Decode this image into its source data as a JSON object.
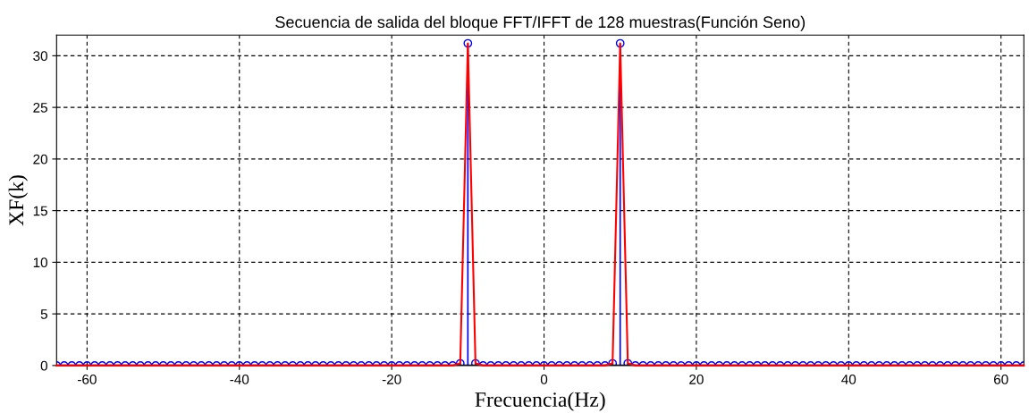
{
  "chart_data": {
    "type": "line",
    "title": "Secuencia de salida del bloque FFT/IFFT de 128 muestras(Función Seno)",
    "xlabel": "Frecuencia(Hz)",
    "ylabel": "XF(k)",
    "x": [
      -64,
      -63,
      -62,
      -61,
      -60,
      -59,
      -58,
      -57,
      -56,
      -55,
      -54,
      -53,
      -52,
      -51,
      -50,
      -49,
      -48,
      -47,
      -46,
      -45,
      -44,
      -43,
      -42,
      -41,
      -40,
      -39,
      -38,
      -37,
      -36,
      -35,
      -34,
      -33,
      -32,
      -31,
      -30,
      -29,
      -28,
      -27,
      -26,
      -25,
      -24,
      -23,
      -22,
      -21,
      -20,
      -19,
      -18,
      -17,
      -16,
      -15,
      -14,
      -13,
      -12,
      -11,
      -10,
      -9,
      -8,
      -7,
      -6,
      -5,
      -4,
      -3,
      -2,
      -1,
      0,
      1,
      2,
      3,
      4,
      5,
      6,
      7,
      8,
      9,
      10,
      11,
      12,
      13,
      14,
      15,
      16,
      17,
      18,
      19,
      20,
      21,
      22,
      23,
      24,
      25,
      26,
      27,
      28,
      29,
      30,
      31,
      32,
      33,
      34,
      35,
      36,
      37,
      38,
      39,
      40,
      41,
      42,
      43,
      44,
      45,
      46,
      47,
      48,
      49,
      50,
      51,
      52,
      53,
      54,
      55,
      56,
      57,
      58,
      59,
      60,
      61,
      62,
      63
    ],
    "series": [
      {
        "type": "lollipop",
        "color": "#0000ff",
        "marker": "circle",
        "values": [
          0,
          0,
          0,
          0,
          0,
          0,
          0,
          0,
          0,
          0,
          0,
          0,
          0,
          0,
          0,
          0,
          0,
          0,
          0,
          0,
          0,
          0,
          0,
          0,
          0,
          0,
          0,
          0,
          0,
          0,
          0,
          0,
          0,
          0,
          0,
          0,
          0,
          0,
          0,
          0,
          0,
          0,
          0,
          0,
          0,
          0,
          0,
          0,
          0,
          0,
          0,
          0,
          0,
          0.2,
          31.2,
          0.2,
          0,
          0,
          0,
          0,
          0,
          0,
          0,
          0,
          0,
          0,
          0,
          0,
          0,
          0,
          0,
          0,
          0,
          0.2,
          31.2,
          0.2,
          0,
          0,
          0,
          0,
          0,
          0,
          0,
          0,
          0,
          0,
          0,
          0,
          0,
          0,
          0,
          0,
          0,
          0,
          0,
          0,
          0,
          0,
          0,
          0,
          0,
          0,
          0,
          0,
          0,
          0,
          0,
          0,
          0,
          0,
          0,
          0,
          0,
          0,
          0,
          0,
          0,
          0,
          0,
          0,
          0,
          0,
          0,
          0,
          0,
          0,
          0,
          0
        ]
      },
      {
        "color": "#ff0000",
        "marker": "none",
        "values": [
          0,
          0,
          0,
          0,
          0,
          0,
          0,
          0,
          0,
          0,
          0,
          0,
          0,
          0,
          0,
          0,
          0,
          0,
          0,
          0,
          0,
          0,
          0,
          0,
          0,
          0,
          0,
          0,
          0,
          0,
          0,
          0,
          0,
          0,
          0,
          0,
          0,
          0,
          0,
          0,
          0,
          0,
          0,
          0,
          0,
          0,
          0,
          0,
          0,
          0,
          0,
          0,
          0,
          0.2,
          31.2,
          0.2,
          0,
          0,
          0,
          0,
          0,
          0,
          0,
          0,
          0,
          0,
          0,
          0,
          0,
          0,
          0,
          0,
          0,
          0.2,
          31.2,
          0.2,
          0,
          0,
          0,
          0,
          0,
          0,
          0,
          0,
          0,
          0,
          0,
          0,
          0,
          0,
          0,
          0,
          0,
          0,
          0,
          0,
          0,
          0,
          0,
          0,
          0,
          0,
          0,
          0,
          0,
          0,
          0,
          0,
          0,
          0,
          0,
          0,
          0,
          0,
          0,
          0,
          0,
          0,
          0,
          0,
          0,
          0,
          0,
          0,
          0,
          0,
          0,
          0
        ]
      }
    ],
    "xlim": [
      -64,
      63
    ],
    "ylim": [
      0,
      32
    ],
    "xticks": [
      -60,
      -40,
      -20,
      0,
      20,
      40,
      60
    ],
    "yticks": [
      0,
      5,
      10,
      15,
      20,
      25,
      30
    ],
    "grid": true,
    "line_style": "solid"
  }
}
